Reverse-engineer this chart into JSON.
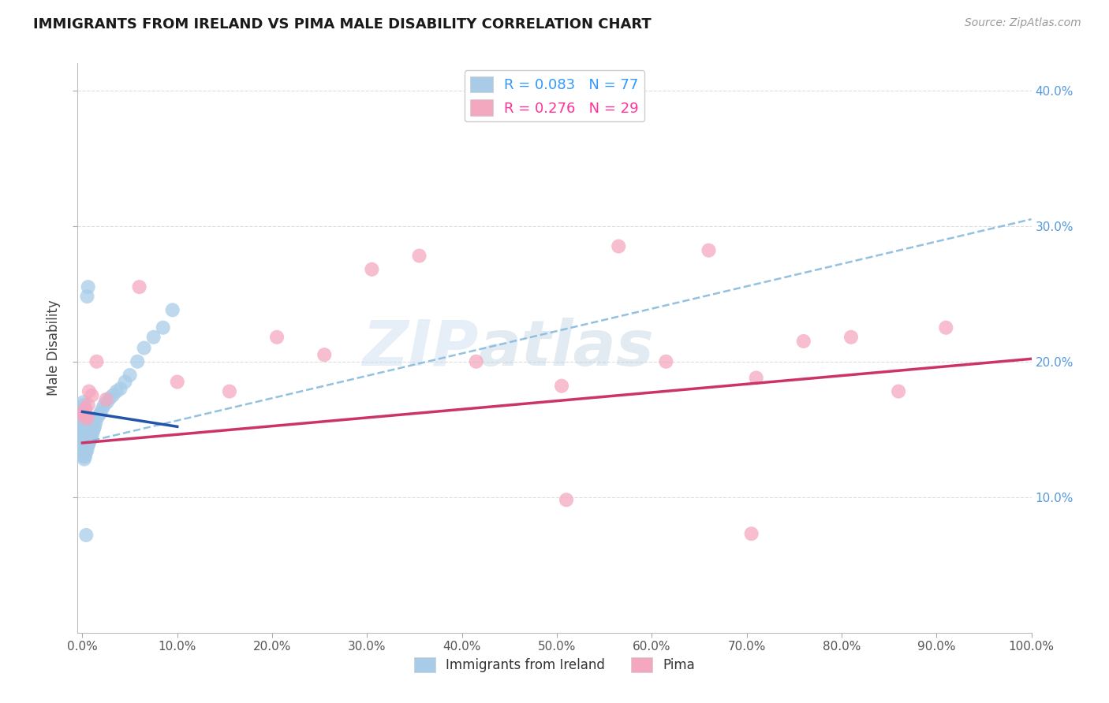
{
  "title": "IMMIGRANTS FROM IRELAND VS PIMA MALE DISABILITY CORRELATION CHART",
  "source": "Source: ZipAtlas.com",
  "ylabel": "Male Disability",
  "xlim": [
    -0.005,
    1.0
  ],
  "ylim": [
    0.0,
    0.42
  ],
  "xticks": [
    0.0,
    0.1,
    0.2,
    0.3,
    0.4,
    0.5,
    0.6,
    0.7,
    0.8,
    0.9,
    1.0
  ],
  "yticks": [
    0.1,
    0.2,
    0.3,
    0.4
  ],
  "legend_r1": "R = 0.083",
  "legend_n1": "N = 77",
  "legend_r2": "R = 0.276",
  "legend_n2": "N = 29",
  "blue_color": "#a8cce8",
  "pink_color": "#f4a8c0",
  "blue_line_color": "#2255aa",
  "pink_line_color": "#cc3366",
  "dashed_line_color": "#88bbdd",
  "watermark_zip": "ZIP",
  "watermark_atlas": "atlas",
  "bg_color": "#ffffff",
  "grid_color": "#dddddd",
  "ireland_x": [
    0.0,
    0.0,
    0.0,
    0.001,
    0.001,
    0.001,
    0.001,
    0.001,
    0.001,
    0.001,
    0.001,
    0.001,
    0.002,
    0.002,
    0.002,
    0.002,
    0.002,
    0.002,
    0.002,
    0.002,
    0.002,
    0.003,
    0.003,
    0.003,
    0.003,
    0.003,
    0.003,
    0.003,
    0.003,
    0.004,
    0.004,
    0.004,
    0.004,
    0.004,
    0.004,
    0.005,
    0.005,
    0.005,
    0.005,
    0.005,
    0.006,
    0.006,
    0.006,
    0.006,
    0.007,
    0.007,
    0.007,
    0.008,
    0.008,
    0.009,
    0.009,
    0.01,
    0.01,
    0.011,
    0.012,
    0.013,
    0.014,
    0.015,
    0.017,
    0.019,
    0.021,
    0.023,
    0.026,
    0.029,
    0.032,
    0.036,
    0.04,
    0.045,
    0.05,
    0.058,
    0.065,
    0.075,
    0.085,
    0.095,
    0.005,
    0.006,
    0.004
  ],
  "ireland_y": [
    0.155,
    0.148,
    0.162,
    0.13,
    0.135,
    0.14,
    0.145,
    0.15,
    0.155,
    0.16,
    0.165,
    0.17,
    0.128,
    0.133,
    0.138,
    0.143,
    0.148,
    0.153,
    0.158,
    0.163,
    0.168,
    0.13,
    0.135,
    0.14,
    0.145,
    0.15,
    0.155,
    0.16,
    0.165,
    0.133,
    0.138,
    0.143,
    0.148,
    0.153,
    0.158,
    0.135,
    0.14,
    0.145,
    0.15,
    0.155,
    0.138,
    0.143,
    0.148,
    0.153,
    0.14,
    0.145,
    0.15,
    0.142,
    0.148,
    0.143,
    0.148,
    0.145,
    0.15,
    0.148,
    0.15,
    0.152,
    0.155,
    0.158,
    0.16,
    0.162,
    0.165,
    0.168,
    0.17,
    0.173,
    0.175,
    0.178,
    0.18,
    0.185,
    0.19,
    0.2,
    0.21,
    0.218,
    0.225,
    0.238,
    0.248,
    0.255,
    0.072
  ],
  "pima_x": [
    0.001,
    0.002,
    0.003,
    0.004,
    0.005,
    0.006,
    0.007,
    0.01,
    0.015,
    0.025,
    0.06,
    0.1,
    0.155,
    0.205,
    0.255,
    0.305,
    0.355,
    0.415,
    0.51,
    0.565,
    0.615,
    0.66,
    0.71,
    0.76,
    0.81,
    0.86,
    0.91,
    0.505,
    0.705
  ],
  "pima_y": [
    0.16,
    0.163,
    0.165,
    0.16,
    0.158,
    0.168,
    0.178,
    0.175,
    0.2,
    0.172,
    0.255,
    0.185,
    0.178,
    0.218,
    0.205,
    0.268,
    0.278,
    0.2,
    0.098,
    0.285,
    0.2,
    0.282,
    0.188,
    0.215,
    0.218,
    0.178,
    0.225,
    0.182,
    0.073
  ],
  "blue_line_x": [
    0.0,
    0.1
  ],
  "blue_line_y": [
    0.163,
    0.152
  ],
  "pink_line_x": [
    0.0,
    1.0
  ],
  "pink_line_y": [
    0.14,
    0.202
  ],
  "dash_line_x": [
    0.0,
    1.0
  ],
  "dash_line_y": [
    0.14,
    0.305
  ]
}
